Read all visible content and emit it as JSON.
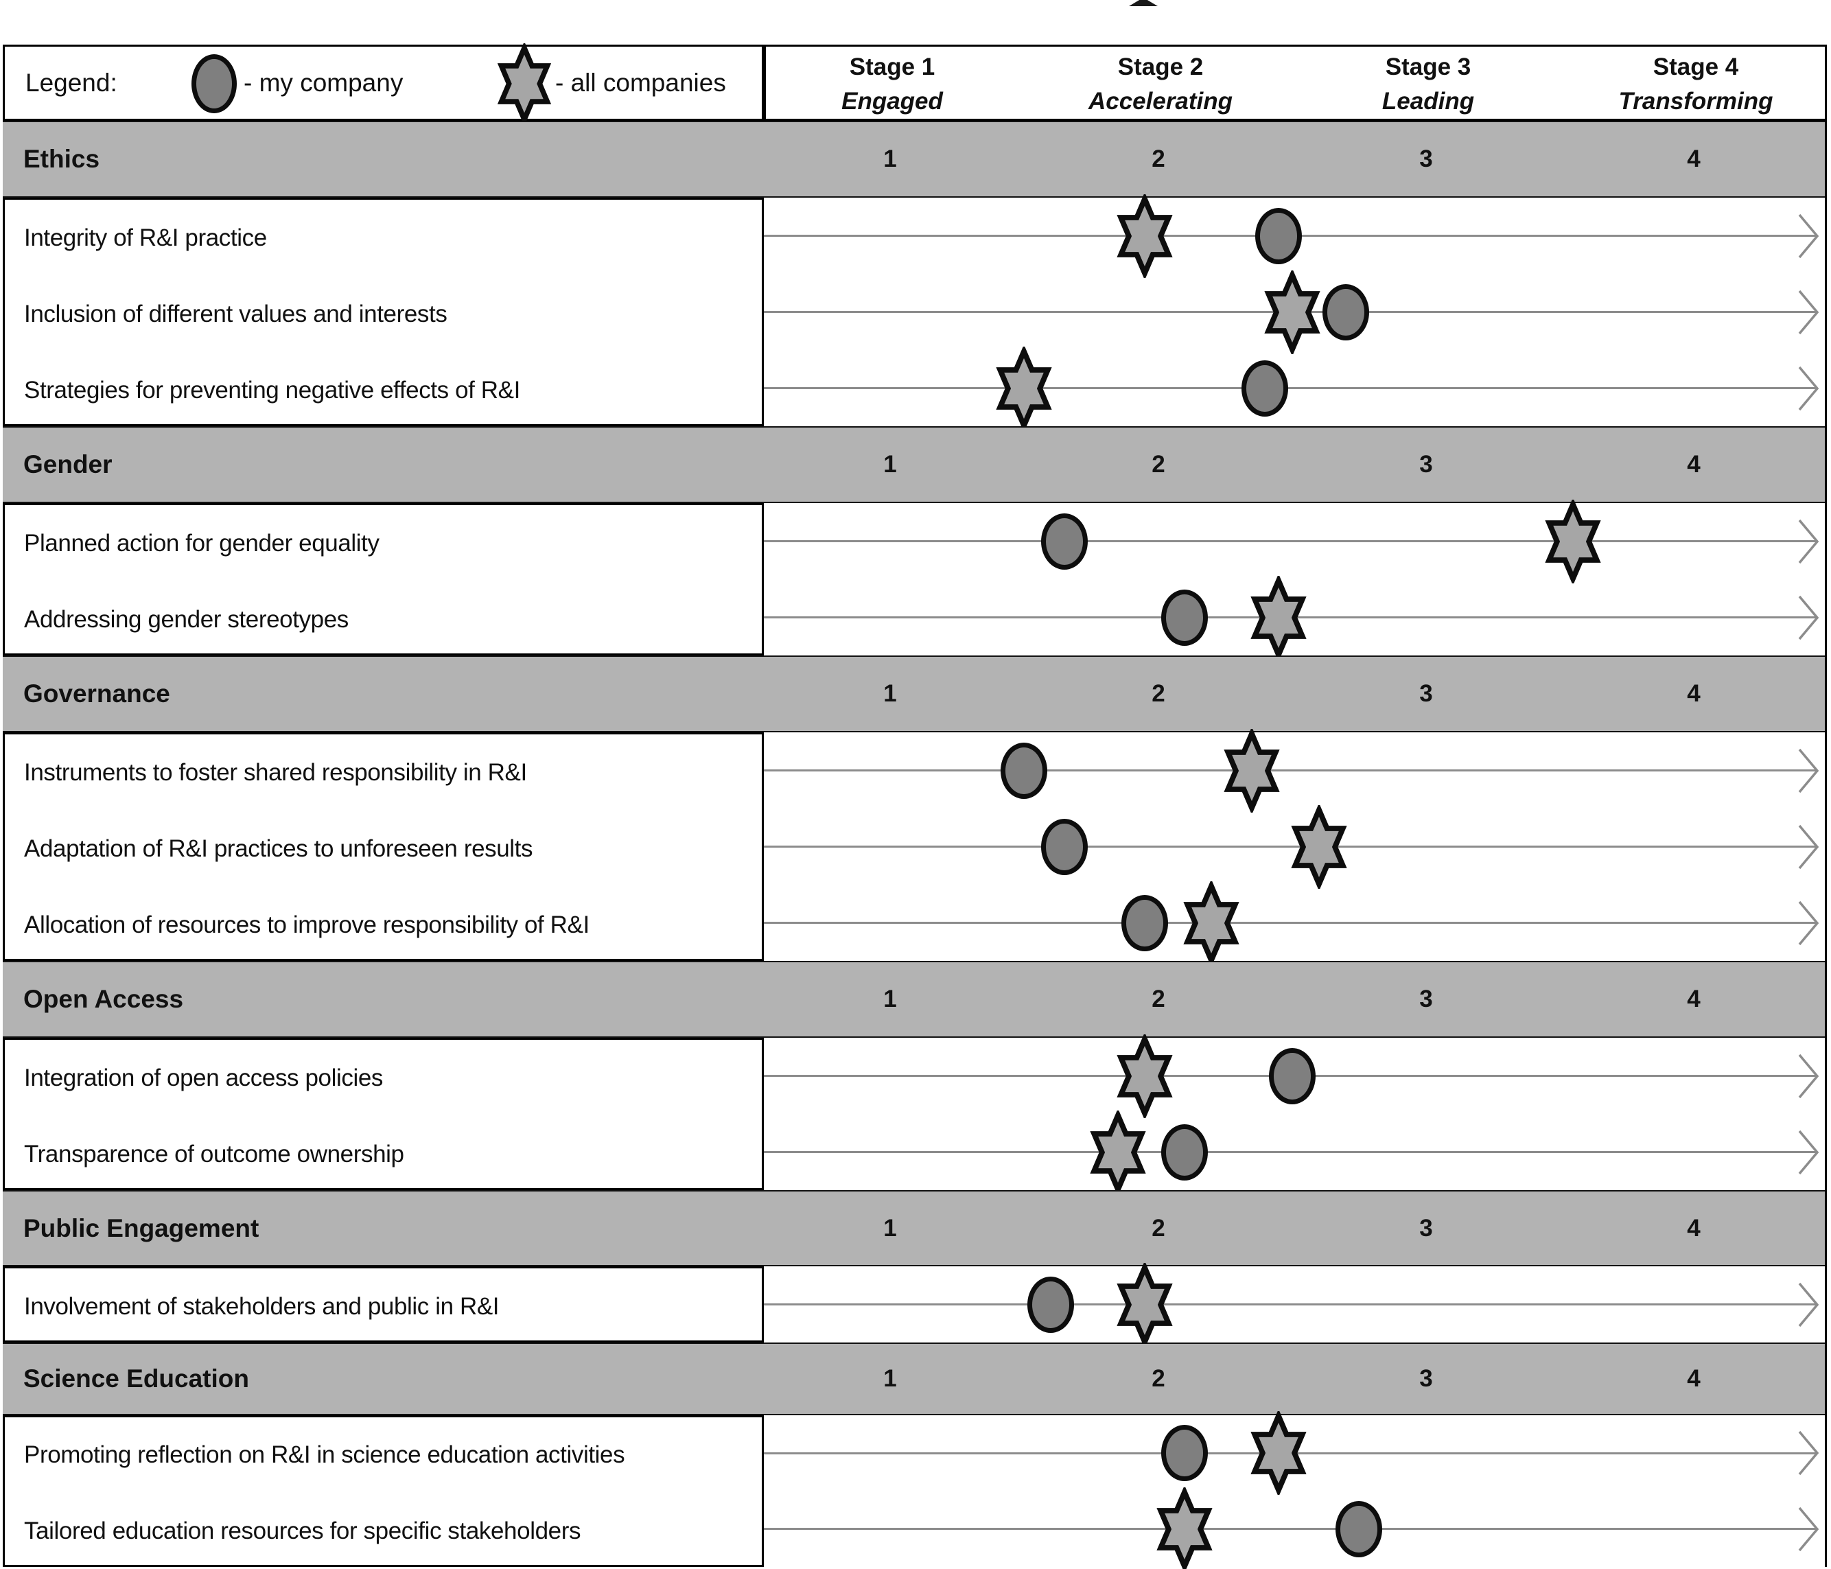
{
  "legend": {
    "label": "Legend:",
    "circle_label": "- my company",
    "star_label": "- all companies"
  },
  "stage_header": [
    {
      "stage": "Stage 1",
      "descriptor": "Engaged",
      "band_number": "1"
    },
    {
      "stage": "Stage 2",
      "descriptor": "Accelerating",
      "band_number": "2"
    },
    {
      "stage": "Stage 3",
      "descriptor": "Leading",
      "band_number": "3"
    },
    {
      "stage": "Stage 4",
      "descriptor": "Transforming",
      "band_number": "4"
    }
  ],
  "colors": {
    "band_gray": "#b3b3b3",
    "circle_fill": "#7f7f7f",
    "star_fill": "#a6a6a6",
    "marker_outline": "#0d0d0d",
    "arrow_line": "#8c8c8c",
    "border_black": "#000000"
  },
  "chart_data": {
    "type": "scatter",
    "title": "",
    "x_axis": {
      "range": [
        1,
        4
      ],
      "stages": [
        "Stage 1 Engaged",
        "Stage 2 Accelerating",
        "Stage 3 Leading",
        "Stage 4 Transforming"
      ],
      "tick_labels": [
        "1",
        "2",
        "3",
        "4"
      ]
    },
    "legend": {
      "circle": "my company",
      "star": "all companies"
    },
    "sections": [
      {
        "name": "Ethics",
        "rows": [
          {
            "label": "Integrity of R&I practice",
            "my_company": 2.45,
            "all_companies": 1.95
          },
          {
            "label": "Inclusion of different values and interests",
            "my_company": 2.7,
            "all_companies": 2.5
          },
          {
            "label": "Strategies for preventing negative effects of R&I",
            "my_company": 2.4,
            "all_companies": 1.5
          }
        ]
      },
      {
        "name": "Gender",
        "rows": [
          {
            "label": "Planned action for gender equality",
            "my_company": 1.65,
            "all_companies": 3.55
          },
          {
            "label": "Addressing gender stereotypes",
            "my_company": 2.1,
            "all_companies": 2.45
          }
        ]
      },
      {
        "name": "Governance",
        "rows": [
          {
            "label": "Instruments to foster shared responsibility in R&I",
            "my_company": 1.5,
            "all_companies": 2.35
          },
          {
            "label": "Adaptation of R&I practices to unforeseen results",
            "my_company": 1.65,
            "all_companies": 2.6
          },
          {
            "label": "Allocation of resources to improve responsibility of R&I",
            "my_company": 1.95,
            "all_companies": 2.2
          }
        ]
      },
      {
        "name": "Open Access",
        "rows": [
          {
            "label": "Integration of open access policies",
            "my_company": 2.5,
            "all_companies": 1.95
          },
          {
            "label": "Transparence of outcome ownership",
            "my_company": 2.1,
            "all_companies": 1.85
          }
        ]
      },
      {
        "name": "Public Engagement",
        "rows": [
          {
            "label": "Involvement of stakeholders and public in R&I",
            "my_company": 1.6,
            "all_companies": 1.95
          }
        ]
      },
      {
        "name": "Science Education",
        "rows": [
          {
            "label": "Promoting reflection on R&I in science education activities",
            "my_company": 2.1,
            "all_companies": 2.45
          },
          {
            "label": "Tailored education resources for specific stakeholders",
            "my_company": 2.75,
            "all_companies": 2.1
          }
        ]
      }
    ]
  }
}
